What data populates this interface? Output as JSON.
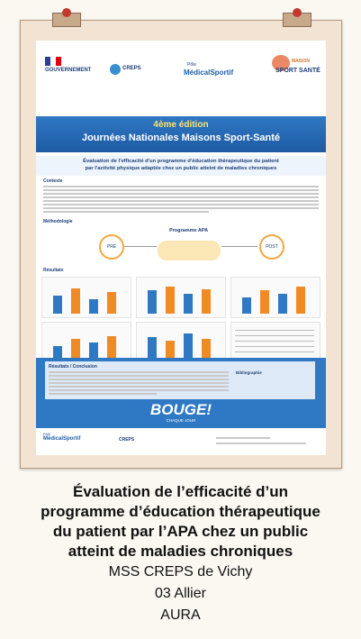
{
  "poster": {
    "logos": {
      "government": "GOUVERNEMENT",
      "creps": "CREPS",
      "pole": "Pôle",
      "medical_sportif": "MédicalSportif",
      "maison": "MAISON",
      "sport_sante": "SPORT SANTÉ"
    },
    "edition": "4ème édition",
    "event": "Journées Nationales Maisons Sport-Santé",
    "title_lines": [
      "Évaluation de l'efficacité d'un programme d'éducation thérapeutique du patient",
      "par l'activité physique adaptée chez un public atteint de maladies chroniques"
    ],
    "sections": {
      "context": "Contexte",
      "method": "Méthodologie",
      "results": "Résultats",
      "conclusion": "Résultats / Conclusion",
      "bibliography": "Bibliographie"
    },
    "program": "Programme APA",
    "pre": "PRÉ",
    "post": "POST",
    "banner": "BOUGE!",
    "banner_sub": "CHAQUE JOUR"
  },
  "caption": {
    "title_lines": [
      "Évaluation de l’efficacité d’un",
      "programme d’éducation thérapeutique",
      "du patient par l’APA chez un public",
      "atteint de maladies chroniques"
    ],
    "organization": "MSS CREPS de Vichy",
    "department": "03 Allier",
    "region": "AURA"
  }
}
